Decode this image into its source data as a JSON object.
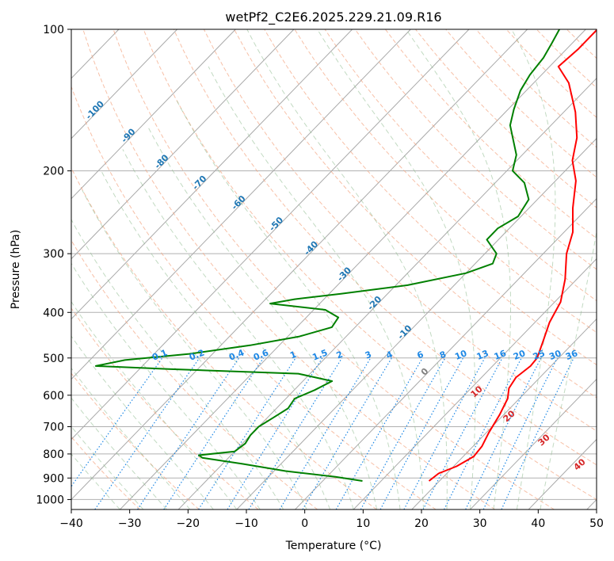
{
  "chart_data": {
    "type": "line",
    "title": "wetPf2_C2E6.2025.229.21.09.R16",
    "xlabel": "Temperature (°C)",
    "ylabel": "Pressure (hPa)",
    "xlim": [
      -40,
      50
    ],
    "ylim": [
      1050,
      100
    ],
    "y_scale": "log",
    "skew": true,
    "grid": true,
    "x_ticks": [
      -40,
      -30,
      -20,
      -10,
      0,
      10,
      20,
      30,
      40,
      50
    ],
    "x_tick_labels": [
      "−40",
      "−30",
      "−20",
      "−10",
      "0",
      "10",
      "20",
      "30",
      "40",
      "50"
    ],
    "y_ticks": [
      100,
      200,
      300,
      400,
      500,
      600,
      700,
      800,
      900,
      1000
    ],
    "y_tick_labels": [
      "100",
      "200",
      "300",
      "400",
      "500",
      "600",
      "700",
      "800",
      "900",
      "1000"
    ],
    "colors": {
      "temperature": "#ff0000",
      "dewpoint": "#008000",
      "isotherm_labels": "#1f77b4",
      "dry_adiabats": "#f4a582",
      "moist_adiabats": "#8fbc8f",
      "mixing_ratio": "#1e88e5",
      "moist_adiabat_labels": "#d62728",
      "zero_isotherm_label": "#808080"
    },
    "series": [
      {
        "color": "#ff0000",
        "points": [
          {
            "p": 913,
            "t": 18.2
          },
          {
            "p": 880,
            "t": 18.6
          },
          {
            "p": 850,
            "t": 20.5
          },
          {
            "p": 810,
            "t": 21.8
          },
          {
            "p": 770,
            "t": 21.5
          },
          {
            "p": 720,
            "t": 20.4
          },
          {
            "p": 660,
            "t": 19.3
          },
          {
            "p": 610,
            "t": 18.0
          },
          {
            "p": 580,
            "t": 16.5
          },
          {
            "p": 550,
            "t": 15.9
          },
          {
            "p": 520,
            "t": 16.5
          },
          {
            "p": 500,
            "t": 16.3
          },
          {
            "p": 460,
            "t": 14.5
          },
          {
            "p": 420,
            "t": 12.5
          },
          {
            "p": 380,
            "t": 11.0
          },
          {
            "p": 340,
            "t": 8.0
          },
          {
            "p": 300,
            "t": 4.0
          },
          {
            "p": 270,
            "t": 1.5
          },
          {
            "p": 240,
            "t": -2.5
          },
          {
            "p": 210,
            "t": -6.5
          },
          {
            "p": 190,
            "t": -10.5
          },
          {
            "p": 170,
            "t": -13.5
          },
          {
            "p": 150,
            "t": -18.0
          },
          {
            "p": 130,
            "t": -24.0
          },
          {
            "p": 120,
            "t": -28.5
          },
          {
            "p": 110,
            "t": -28.0
          },
          {
            "p": 100,
            "t": -28.0
          }
        ]
      },
      {
        "color": "#008000",
        "points": [
          {
            "p": 913,
            "t": 6.8
          },
          {
            "p": 895,
            "t": 1.5
          },
          {
            "p": 870,
            "t": -8.0
          },
          {
            "p": 840,
            "t": -16.5
          },
          {
            "p": 815,
            "t": -24.5
          },
          {
            "p": 805,
            "t": -25.5
          },
          {
            "p": 790,
            "t": -20.0
          },
          {
            "p": 760,
            "t": -19.5
          },
          {
            "p": 730,
            "t": -20.0
          },
          {
            "p": 700,
            "t": -20.0
          },
          {
            "p": 670,
            "t": -19.0
          },
          {
            "p": 640,
            "t": -18.0
          },
          {
            "p": 610,
            "t": -18.5
          },
          {
            "p": 585,
            "t": -16.5
          },
          {
            "p": 560,
            "t": -15.0
          },
          {
            "p": 540,
            "t": -22.0
          },
          {
            "p": 528,
            "t": -45.0
          },
          {
            "p": 520,
            "t": -58.0
          },
          {
            "p": 505,
            "t": -54.0
          },
          {
            "p": 490,
            "t": -44.0
          },
          {
            "p": 470,
            "t": -35.0
          },
          {
            "p": 450,
            "t": -28.0
          },
          {
            "p": 430,
            "t": -24.0
          },
          {
            "p": 410,
            "t": -24.5
          },
          {
            "p": 395,
            "t": -28.0
          },
          {
            "p": 383,
            "t": -38.5
          },
          {
            "p": 375,
            "t": -35.0
          },
          {
            "p": 365,
            "t": -28.0
          },
          {
            "p": 350,
            "t": -18.0
          },
          {
            "p": 330,
            "t": -10.0
          },
          {
            "p": 315,
            "t": -7.0
          },
          {
            "p": 300,
            "t": -8.0
          },
          {
            "p": 280,
            "t": -12.0
          },
          {
            "p": 265,
            "t": -12.0
          },
          {
            "p": 250,
            "t": -10.5
          },
          {
            "p": 230,
            "t": -11.5
          },
          {
            "p": 212,
            "t": -15.0
          },
          {
            "p": 200,
            "t": -19.0
          },
          {
            "p": 185,
            "t": -21.0
          },
          {
            "p": 170,
            "t": -24.5
          },
          {
            "p": 160,
            "t": -27.0
          },
          {
            "p": 148,
            "t": -29.0
          },
          {
            "p": 135,
            "t": -31.0
          },
          {
            "p": 125,
            "t": -32.0
          },
          {
            "p": 115,
            "t": -32.5
          },
          {
            "p": 107,
            "t": -33.5
          },
          {
            "p": 100,
            "t": -34.5
          }
        ]
      }
    ],
    "isotherm_labels": [
      "-100",
      "-90",
      "-80",
      "-70",
      "-60",
      "-50",
      "-40",
      "-30",
      "-20",
      "-10",
      "0"
    ],
    "mixing_ratio_labels": [
      "0.1",
      "0.2",
      "0.4",
      "0.6",
      "1",
      "1.5",
      "2",
      "3",
      "4",
      "6",
      "8",
      "10",
      "13",
      "16",
      "20",
      "25",
      "30",
      "36"
    ],
    "moist_adiabat_labels": [
      "10",
      "20",
      "30",
      "40"
    ]
  }
}
